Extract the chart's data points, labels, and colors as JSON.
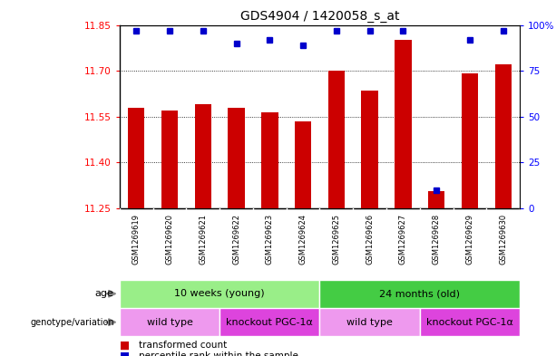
{
  "title": "GDS4904 / 1420058_s_at",
  "samples": [
    "GSM1269619",
    "GSM1269620",
    "GSM1269621",
    "GSM1269622",
    "GSM1269623",
    "GSM1269624",
    "GSM1269625",
    "GSM1269626",
    "GSM1269627",
    "GSM1269628",
    "GSM1269629",
    "GSM1269630"
  ],
  "transformed_count": [
    11.58,
    11.57,
    11.59,
    11.58,
    11.565,
    11.535,
    11.7,
    11.635,
    11.8,
    11.305,
    11.69,
    11.72
  ],
  "percentile_rank": [
    97,
    97,
    97,
    90,
    92,
    89,
    97,
    97,
    97,
    10,
    92,
    97
  ],
  "ylim_left": [
    11.25,
    11.85
  ],
  "yticks_left": [
    11.25,
    11.4,
    11.55,
    11.7,
    11.85
  ],
  "yticks_right": [
    0,
    25,
    50,
    75,
    100
  ],
  "ylim_right": [
    0,
    100
  ],
  "bar_color": "#cc0000",
  "dot_color": "#0000cc",
  "age_groups": [
    {
      "label": "10 weeks (young)",
      "start": 0,
      "end": 5,
      "color": "#99ee88"
    },
    {
      "label": "24 months (old)",
      "start": 6,
      "end": 11,
      "color": "#44cc44"
    }
  ],
  "genotype_groups": [
    {
      "label": "wild type",
      "start": 0,
      "end": 2,
      "color": "#ee99ee"
    },
    {
      "label": "knockout PGC-1α",
      "start": 3,
      "end": 5,
      "color": "#dd44dd"
    },
    {
      "label": "wild type",
      "start": 6,
      "end": 8,
      "color": "#ee99ee"
    },
    {
      "label": "knockout PGC-1α",
      "start": 9,
      "end": 11,
      "color": "#dd44dd"
    }
  ],
  "legend_items": [
    {
      "label": "transformed count",
      "color": "#cc0000"
    },
    {
      "label": "percentile rank within the sample",
      "color": "#0000cc"
    }
  ],
  "title_fontsize": 10,
  "tick_fontsize": 7.5,
  "sample_fontsize": 6,
  "annot_fontsize": 8,
  "legend_fontsize": 7.5
}
